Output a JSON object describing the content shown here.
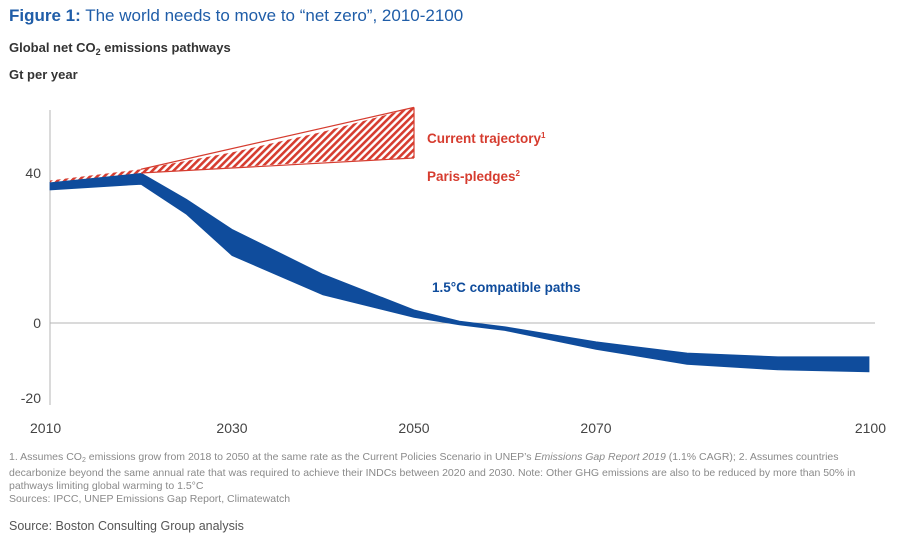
{
  "figure": {
    "label": "Figure 1:",
    "title": "The world needs to move to “net zero”, 2010-2100"
  },
  "subtitle": {
    "prefix": "Global net CO",
    "subscript": "2",
    "suffix": " emissions pathways"
  },
  "unit": "Gt per year",
  "chart_data": {
    "type": "area",
    "title": "",
    "xlabel": "",
    "ylabel": "Gt per year",
    "xlim": [
      2010,
      2100
    ],
    "ylim": [
      -22,
      58
    ],
    "x_ticks": [
      "2010",
      "2030",
      "2050",
      "2070",
      "2100"
    ],
    "y_ticks": [
      "40",
      "0",
      "-20"
    ],
    "grid": false,
    "series": [
      {
        "name": "Current trajectory",
        "superscript": "1",
        "style": "hatched",
        "color": "#d63c2f",
        "x": [
          2010,
          2020,
          2030,
          2040,
          2050
        ],
        "upper": [
          38,
          41,
          45.5,
          51,
          57.5
        ],
        "lower": [
          37.5,
          40,
          41.5,
          43,
          44
        ]
      },
      {
        "name": "Paris-pledges",
        "superscript": "2",
        "style": "hatched",
        "color": "#d63c2f",
        "x": [
          2050
        ],
        "upper": [
          44
        ],
        "lower": [
          44
        ]
      },
      {
        "name": "1.5°C compatible paths",
        "style": "solid",
        "color": "#0f4c9c",
        "x": [
          2010,
          2020,
          2025,
          2030,
          2040,
          2050,
          2055,
          2060,
          2070,
          2080,
          2090,
          2100
        ],
        "upper": [
          37.5,
          40,
          33,
          25,
          13,
          3.5,
          0.5,
          -1,
          -5,
          -8,
          -9,
          -9
        ],
        "lower": [
          35.5,
          37,
          29,
          18,
          7.5,
          1.5,
          -0.5,
          -2,
          -7,
          -11,
          -12.5,
          -13
        ]
      }
    ]
  },
  "footnotes": {
    "note1_prefix": "1. Assumes CO",
    "note1_sub": "2",
    "note1_mid": " emissions grow from 2018 to 2050 at the same rate as the Current Policies Scenario in UNEP’s ",
    "note1_italic": "Emissions Gap Report 2019",
    "note1_rest": " (1.1% CAGR); 2. Assumes countries decarbonize beyond the same annual rate that was required to achieve their INDCs between 2020 and 2030. Note: Other GHG emissions are also to be reduced by more than 50% in pathways limiting global warming to 1.5°C",
    "sources": "Sources: IPCC, UNEP Emissions Gap Report, Climatewatch"
  },
  "source": "Source: Boston Consulting Group analysis"
}
